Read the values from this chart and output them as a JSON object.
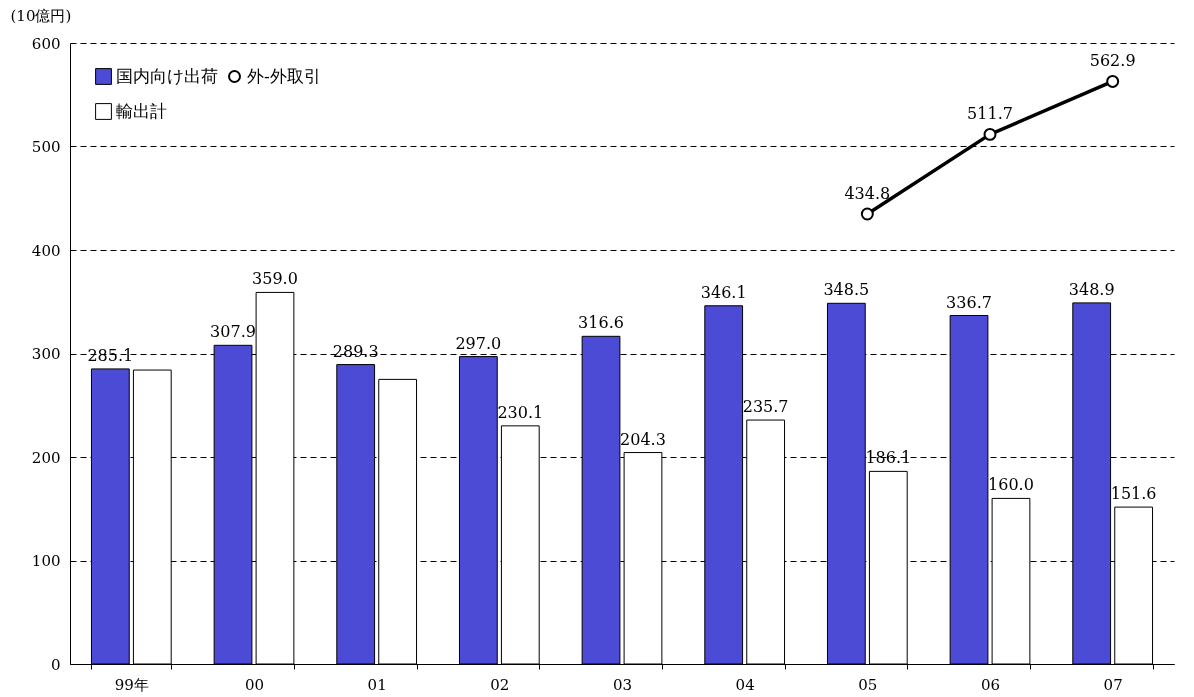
{
  "chart_data": {
    "type": "bar",
    "ylabel": "(10億円)",
    "categories": [
      "99年",
      "00",
      "01",
      "02",
      "03",
      "04",
      "05",
      "06",
      "07"
    ],
    "series": [
      {
        "name": "国内向け出荷",
        "color": "#4b4bd6",
        "values": [
          285.1,
          307.9,
          289.3,
          297.0,
          316.6,
          346.1,
          348.5,
          336.7,
          348.9
        ],
        "value_labels": [
          "285.1",
          "307.9",
          "289.3",
          "297.0",
          "316.6",
          "346.1",
          "348.5",
          "336.7",
          "348.9"
        ]
      },
      {
        "name": "輸出計",
        "color": "#ffffff",
        "values": [
          284,
          359.0,
          275,
          230.1,
          204.3,
          235.7,
          186.1,
          160.0,
          151.6
        ],
        "value_labels": [
          null,
          "359.0",
          null,
          "230.1",
          "204.3",
          "235.7",
          "186.1",
          "160.0",
          "151.6"
        ]
      },
      {
        "name": "外-外取引",
        "type": "line",
        "color": "#000000",
        "marker": "circle",
        "values": [
          null,
          null,
          null,
          null,
          null,
          null,
          434.8,
          511.7,
          562.9
        ],
        "value_labels": [
          null,
          null,
          null,
          null,
          null,
          null,
          "434.8",
          "511.7",
          "562.9"
        ]
      }
    ],
    "ylim": [
      0,
      600
    ],
    "yticks": [
      0,
      100,
      200,
      300,
      400,
      500,
      600
    ],
    "grid": "y",
    "legend": "top left"
  }
}
